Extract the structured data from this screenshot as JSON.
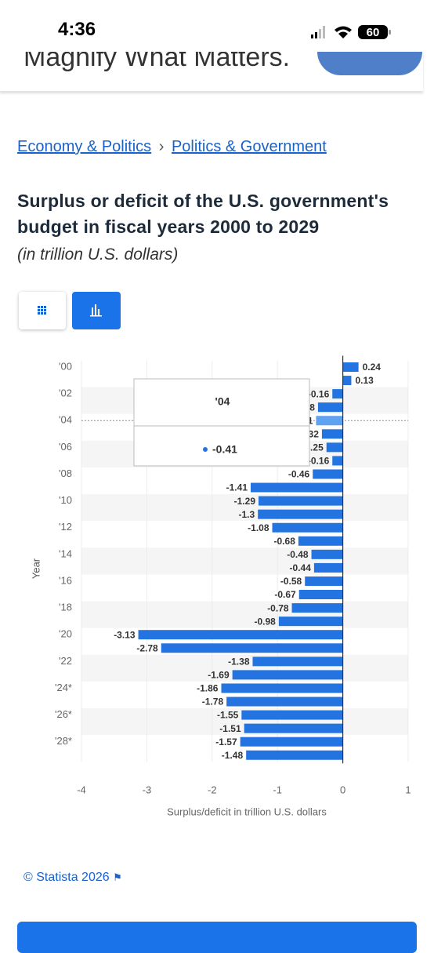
{
  "status_bar": {
    "time": "4:36",
    "battery": "60"
  },
  "ad": {
    "text": "Magnify What Matters."
  },
  "breadcrumbs": [
    "Economy & Politics",
    "Politics & Government"
  ],
  "footer": {
    "source": "© Statista 2026"
  },
  "chart_data": {
    "type": "bar",
    "orientation": "horizontal",
    "title": "Surplus or deficit of the U.S. government's budget in fiscal years 2000 to 2029",
    "subtitle": "(in trillion U.S. dollars)",
    "y_label": "Year",
    "x_label": "Surplus/deficit in trillion U.S. dollars",
    "categories": [
      "'00",
      null,
      "'02",
      null,
      "'04",
      null,
      "'06",
      null,
      "'08",
      null,
      "'10",
      null,
      "'12",
      null,
      "'14",
      null,
      "'16",
      null,
      "'18",
      null,
      "'20",
      null,
      "'22",
      null,
      "'24*",
      null,
      "'26*",
      null,
      "'28*",
      null
    ],
    "values": [
      0.24,
      0.13,
      -0.16,
      -0.38,
      -0.41,
      -0.32,
      -0.25,
      -0.16,
      -0.46,
      -1.41,
      -1.29,
      -1.3,
      -1.08,
      -0.68,
      -0.48,
      -0.44,
      -0.58,
      -0.67,
      -0.78,
      -0.98,
      -3.13,
      -2.78,
      -1.38,
      -1.69,
      -1.86,
      -1.78,
      -1.55,
      -1.51,
      -1.57,
      -1.48
    ],
    "color": "#2373e0",
    "xlim": [
      -4,
      1
    ],
    "xticks": [
      -4,
      -3,
      -2,
      -1,
      0,
      1
    ]
  }
}
